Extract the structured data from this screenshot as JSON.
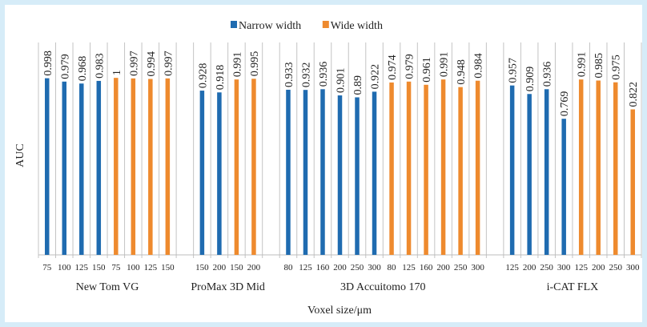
{
  "chart_data": {
    "type": "bar",
    "ylabel": "AUC",
    "xlabel": "Voxel size/μm",
    "legend_position": "top",
    "ylim": [
      0,
      1.2
    ],
    "colors": {
      "narrow": "#1f6bb0",
      "wide": "#ee8a2e"
    },
    "legend": [
      {
        "key": "narrow",
        "label": "Narrow width"
      },
      {
        "key": "wide",
        "label": "Wide width"
      }
    ],
    "groups": [
      {
        "name": "New Tom VG",
        "bars": [
          {
            "x": "75",
            "series": "narrow",
            "value": 0.998,
            "label": "0.998"
          },
          {
            "x": "100",
            "series": "narrow",
            "value": 0.979,
            "label": "0.979"
          },
          {
            "x": "125",
            "series": "narrow",
            "value": 0.968,
            "label": "0.968"
          },
          {
            "x": "150",
            "series": "narrow",
            "value": 0.983,
            "label": "0.983"
          },
          {
            "x": "75",
            "series": "wide",
            "value": 1,
            "label": "1"
          },
          {
            "x": "100",
            "series": "wide",
            "value": 0.997,
            "label": "0.997"
          },
          {
            "x": "125",
            "series": "wide",
            "value": 0.994,
            "label": "0.994"
          },
          {
            "x": "150",
            "series": "wide",
            "value": 0.997,
            "label": "0.997"
          }
        ]
      },
      {
        "name": "ProMax 3D Mid",
        "bars": [
          {
            "x": "150",
            "series": "narrow",
            "value": 0.928,
            "label": "0.928"
          },
          {
            "x": "200",
            "series": "narrow",
            "value": 0.918,
            "label": "0.918"
          },
          {
            "x": "150",
            "series": "wide",
            "value": 0.991,
            "label": "0.991"
          },
          {
            "x": "200",
            "series": "wide",
            "value": 0.995,
            "label": "0.995"
          }
        ]
      },
      {
        "name": "3D Accuitomo 170",
        "bars": [
          {
            "x": "80",
            "series": "narrow",
            "value": 0.933,
            "label": "0.933"
          },
          {
            "x": "125",
            "series": "narrow",
            "value": 0.932,
            "label": "0.932"
          },
          {
            "x": "160",
            "series": "narrow",
            "value": 0.936,
            "label": "0.936"
          },
          {
            "x": "200",
            "series": "narrow",
            "value": 0.901,
            "label": "0.901"
          },
          {
            "x": "250",
            "series": "narrow",
            "value": 0.89,
            "label": "0.89"
          },
          {
            "x": "300",
            "series": "narrow",
            "value": 0.922,
            "label": "0.922"
          },
          {
            "x": "80",
            "series": "wide",
            "value": 0.974,
            "label": "0.974"
          },
          {
            "x": "125",
            "series": "wide",
            "value": 0.979,
            "label": "0.979"
          },
          {
            "x": "160",
            "series": "wide",
            "value": 0.961,
            "label": "0.961"
          },
          {
            "x": "200",
            "series": "wide",
            "value": 0.991,
            "label": "0.991"
          },
          {
            "x": "250",
            "series": "wide",
            "value": 0.948,
            "label": "0.948"
          },
          {
            "x": "300",
            "series": "wide",
            "value": 0.984,
            "label": "0.984"
          }
        ]
      },
      {
        "name": "i-CAT FLX",
        "bars": [
          {
            "x": "125",
            "series": "narrow",
            "value": 0.957,
            "label": "0.957"
          },
          {
            "x": "200",
            "series": "narrow",
            "value": 0.909,
            "label": "0.909"
          },
          {
            "x": "250",
            "series": "narrow",
            "value": 0.936,
            "label": "0.936"
          },
          {
            "x": "300",
            "series": "narrow",
            "value": 0.769,
            "label": "0.769"
          },
          {
            "x": "125",
            "series": "wide",
            "value": 0.991,
            "label": "0.991"
          },
          {
            "x": "200",
            "series": "wide",
            "value": 0.985,
            "label": "0.985"
          },
          {
            "x": "250",
            "series": "wide",
            "value": 0.975,
            "label": "0.975"
          },
          {
            "x": "300",
            "series": "wide",
            "value": 0.822,
            "label": "0.822"
          }
        ]
      }
    ]
  }
}
